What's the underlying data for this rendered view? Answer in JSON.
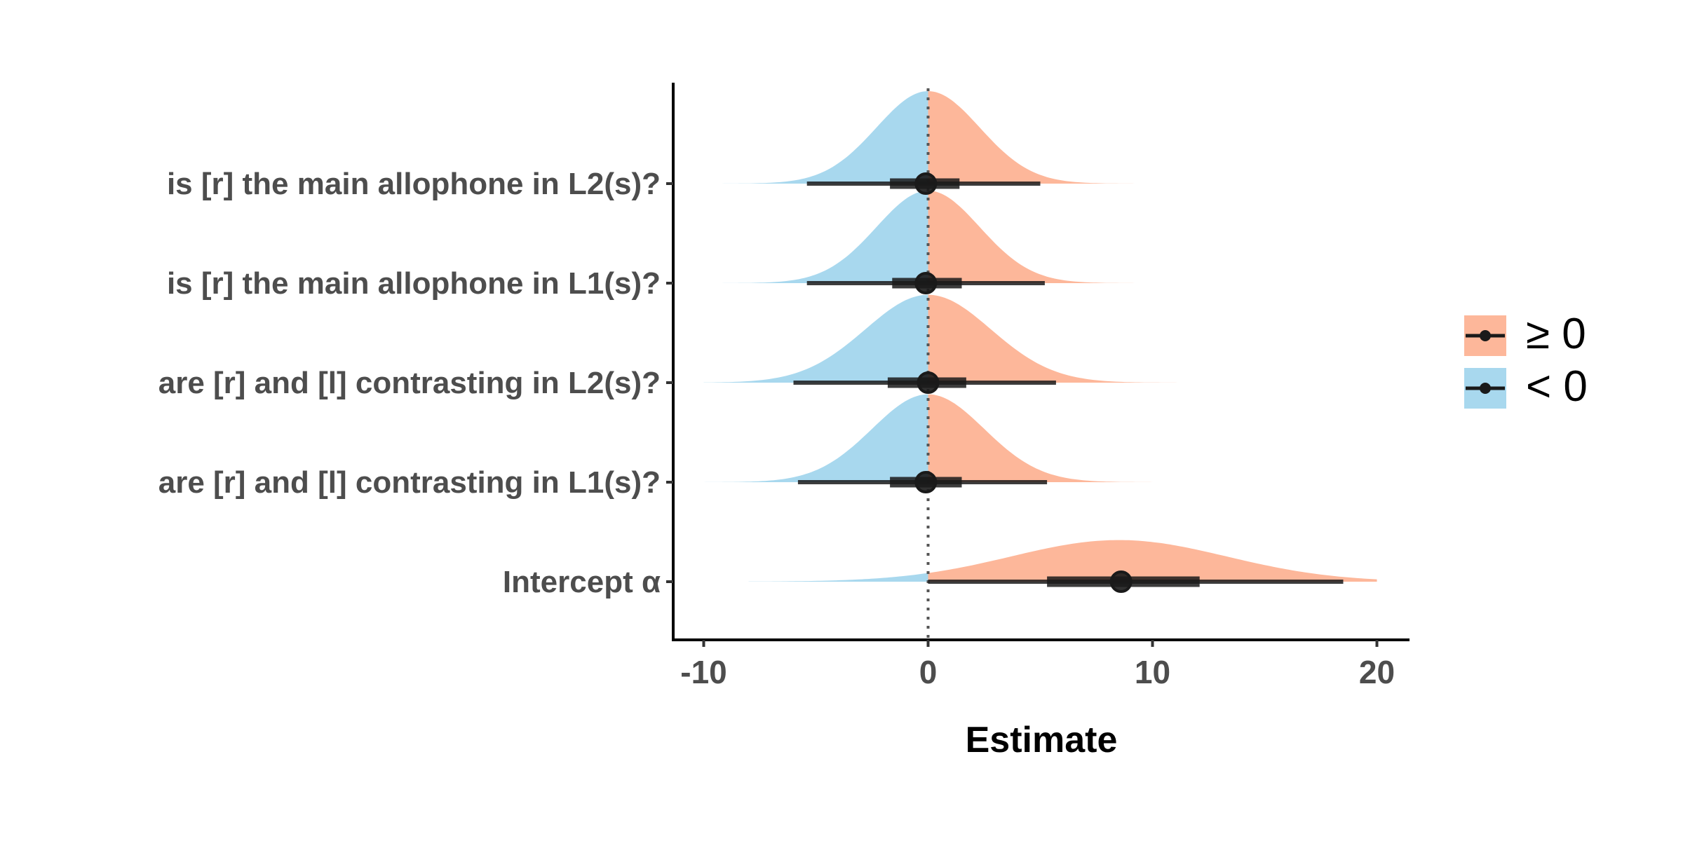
{
  "chart_data": {
    "type": "ridgeline",
    "xlabel": "Estimate",
    "ylabel": "",
    "xlim": [
      -10.5,
      21.5
    ],
    "xticks": [
      -10,
      0,
      10,
      20
    ],
    "reference_line_x": 0,
    "grid": false,
    "legend_position": "right",
    "colors": {
      "positive": "#fdb79a",
      "negative": "#a8d8ee",
      "interval": "#1a1a1a"
    },
    "legend": [
      {
        "key": "positive",
        "label": "≥ 0"
      },
      {
        "key": "negative",
        "label": "< 0"
      }
    ],
    "rows": [
      {
        "label": "is [r] the main allophone in L2(s)?",
        "median": -0.1,
        "inner": [
          -1.7,
          1.4
        ],
        "outer": [
          -5.4,
          5.0
        ],
        "range": [
          -10,
          13
        ],
        "mode": 0,
        "sd": 2.3,
        "peak": 1.0
      },
      {
        "label": "is [r] the main allophone in L1(s)?",
        "median": -0.1,
        "inner": [
          -1.6,
          1.5
        ],
        "outer": [
          -5.4,
          5.2
        ],
        "range": [
          -10,
          13
        ],
        "mode": 0,
        "sd": 2.3,
        "peak": 1.0
      },
      {
        "label": "are [r] and [l] contrasting in L2(s)?",
        "median": 0.0,
        "inner": [
          -1.8,
          1.7
        ],
        "outer": [
          -6.0,
          5.7
        ],
        "range": [
          -10,
          15
        ],
        "mode": 0,
        "sd": 2.8,
        "peak": 0.95
      },
      {
        "label": "are [r] and [l] contrasting in L1(s)?",
        "median": -0.1,
        "inner": [
          -1.7,
          1.5
        ],
        "outer": [
          -5.8,
          5.3
        ],
        "range": [
          -10,
          16
        ],
        "mode": 0,
        "sd": 2.5,
        "peak": 0.95
      },
      {
        "label": "Intercept α",
        "median": 8.6,
        "inner": [
          5.3,
          12.1
        ],
        "outer": [
          0.0,
          18.5
        ],
        "range": [
          -8,
          20
        ],
        "mode": 8.5,
        "sd": 4.8,
        "peak": 0.45
      }
    ]
  }
}
